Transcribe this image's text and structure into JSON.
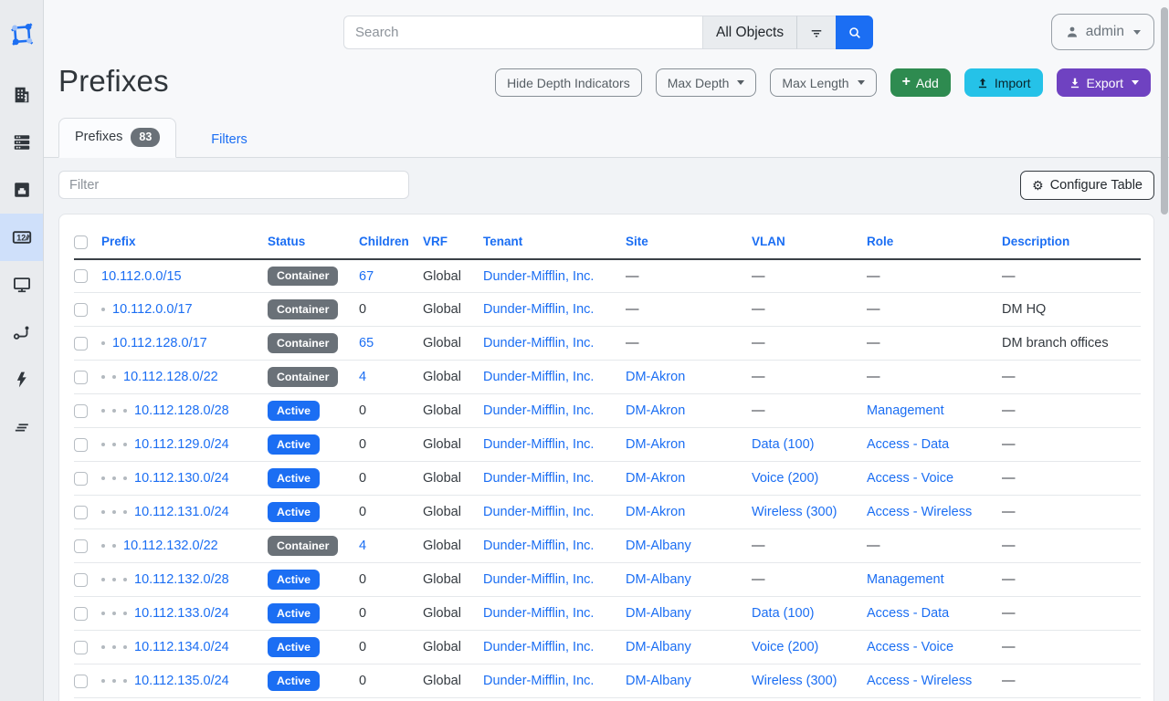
{
  "navbar": {
    "search_placeholder": "Search",
    "scope_label": "All Objects",
    "user_label": "admin"
  },
  "sidebar": {
    "logo": "netbox-logo",
    "items": [
      {
        "icon": "building-icon",
        "active": false
      },
      {
        "icon": "server-stack-icon",
        "active": false
      },
      {
        "icon": "ethernet-port-icon",
        "active": false
      },
      {
        "icon": "ipam-counter-icon",
        "active": true
      },
      {
        "icon": "monitor-icon",
        "active": false
      },
      {
        "icon": "route-icon",
        "active": false
      },
      {
        "icon": "lightning-icon",
        "active": false
      },
      {
        "icon": "stacked-lines-icon",
        "active": false
      }
    ]
  },
  "page": {
    "title": "Prefixes",
    "actions": {
      "hide_depth": "Hide Depth Indicators",
      "max_depth": "Max Depth",
      "max_length": "Max Length",
      "add": "Add",
      "import": "Import",
      "export": "Export"
    },
    "tabs": [
      {
        "label": "Prefixes",
        "count": "83"
      },
      {
        "label": "Filters"
      }
    ]
  },
  "toolbar": {
    "filter_placeholder": "Filter",
    "configure_table": "Configure Table"
  },
  "colors": {
    "accent_blue": "#1b6ef3",
    "badge_container_gray": "#6a7178",
    "badge_active_blue": "#1b6ef3",
    "add_green": "#2e8b50",
    "import_cyan": "#25c2e8",
    "export_purple": "#6f42c1"
  },
  "table": {
    "columns": [
      "Prefix",
      "Status",
      "Children",
      "VRF",
      "Tenant",
      "Site",
      "VLAN",
      "Role",
      "Description"
    ],
    "rows": [
      {
        "depth": 0,
        "prefix": "10.112.0.0/15",
        "status": "Container",
        "status_variant": "gray",
        "children": "67",
        "children_is_link": true,
        "vrf": "Global",
        "tenant": "Dunder-Mifflin, Inc.",
        "site": "—",
        "vlan": "—",
        "role": "—",
        "description": "—"
      },
      {
        "depth": 1,
        "prefix": "10.112.0.0/17",
        "status": "Container",
        "status_variant": "gray",
        "children": "0",
        "children_is_link": false,
        "vrf": "Global",
        "tenant": "Dunder-Mifflin, Inc.",
        "site": "—",
        "vlan": "—",
        "role": "—",
        "description": "DM HQ"
      },
      {
        "depth": 1,
        "prefix": "10.112.128.0/17",
        "status": "Container",
        "status_variant": "gray",
        "children": "65",
        "children_is_link": true,
        "vrf": "Global",
        "tenant": "Dunder-Mifflin, Inc.",
        "site": "—",
        "vlan": "—",
        "role": "—",
        "description": "DM branch offices"
      },
      {
        "depth": 2,
        "prefix": "10.112.128.0/22",
        "status": "Container",
        "status_variant": "gray",
        "children": "4",
        "children_is_link": true,
        "vrf": "Global",
        "tenant": "Dunder-Mifflin, Inc.",
        "site": "DM-Akron",
        "vlan": "—",
        "role": "—",
        "description": "—"
      },
      {
        "depth": 3,
        "prefix": "10.112.128.0/28",
        "status": "Active",
        "status_variant": "blue",
        "children": "0",
        "children_is_link": false,
        "vrf": "Global",
        "tenant": "Dunder-Mifflin, Inc.",
        "site": "DM-Akron",
        "vlan": "—",
        "role": "Management",
        "description": "—"
      },
      {
        "depth": 3,
        "prefix": "10.112.129.0/24",
        "status": "Active",
        "status_variant": "blue",
        "children": "0",
        "children_is_link": false,
        "vrf": "Global",
        "tenant": "Dunder-Mifflin, Inc.",
        "site": "DM-Akron",
        "vlan": "Data (100)",
        "role": "Access - Data",
        "description": "—"
      },
      {
        "depth": 3,
        "prefix": "10.112.130.0/24",
        "status": "Active",
        "status_variant": "blue",
        "children": "0",
        "children_is_link": false,
        "vrf": "Global",
        "tenant": "Dunder-Mifflin, Inc.",
        "site": "DM-Akron",
        "vlan": "Voice (200)",
        "role": "Access - Voice",
        "description": "—"
      },
      {
        "depth": 3,
        "prefix": "10.112.131.0/24",
        "status": "Active",
        "status_variant": "blue",
        "children": "0",
        "children_is_link": false,
        "vrf": "Global",
        "tenant": "Dunder-Mifflin, Inc.",
        "site": "DM-Akron",
        "vlan": "Wireless (300)",
        "role": "Access - Wireless",
        "description": "—"
      },
      {
        "depth": 2,
        "prefix": "10.112.132.0/22",
        "status": "Container",
        "status_variant": "gray",
        "children": "4",
        "children_is_link": true,
        "vrf": "Global",
        "tenant": "Dunder-Mifflin, Inc.",
        "site": "DM-Albany",
        "vlan": "—",
        "role": "—",
        "description": "—"
      },
      {
        "depth": 3,
        "prefix": "10.112.132.0/28",
        "status": "Active",
        "status_variant": "blue",
        "children": "0",
        "children_is_link": false,
        "vrf": "Global",
        "tenant": "Dunder-Mifflin, Inc.",
        "site": "DM-Albany",
        "vlan": "—",
        "role": "Management",
        "description": "—"
      },
      {
        "depth": 3,
        "prefix": "10.112.133.0/24",
        "status": "Active",
        "status_variant": "blue",
        "children": "0",
        "children_is_link": false,
        "vrf": "Global",
        "tenant": "Dunder-Mifflin, Inc.",
        "site": "DM-Albany",
        "vlan": "Data (100)",
        "role": "Access - Data",
        "description": "—"
      },
      {
        "depth": 3,
        "prefix": "10.112.134.0/24",
        "status": "Active",
        "status_variant": "blue",
        "children": "0",
        "children_is_link": false,
        "vrf": "Global",
        "tenant": "Dunder-Mifflin, Inc.",
        "site": "DM-Albany",
        "vlan": "Voice (200)",
        "role": "Access - Voice",
        "description": "—"
      },
      {
        "depth": 3,
        "prefix": "10.112.135.0/24",
        "status": "Active",
        "status_variant": "blue",
        "children": "0",
        "children_is_link": false,
        "vrf": "Global",
        "tenant": "Dunder-Mifflin, Inc.",
        "site": "DM-Albany",
        "vlan": "Wireless (300)",
        "role": "Access - Wireless",
        "description": "—"
      }
    ]
  }
}
